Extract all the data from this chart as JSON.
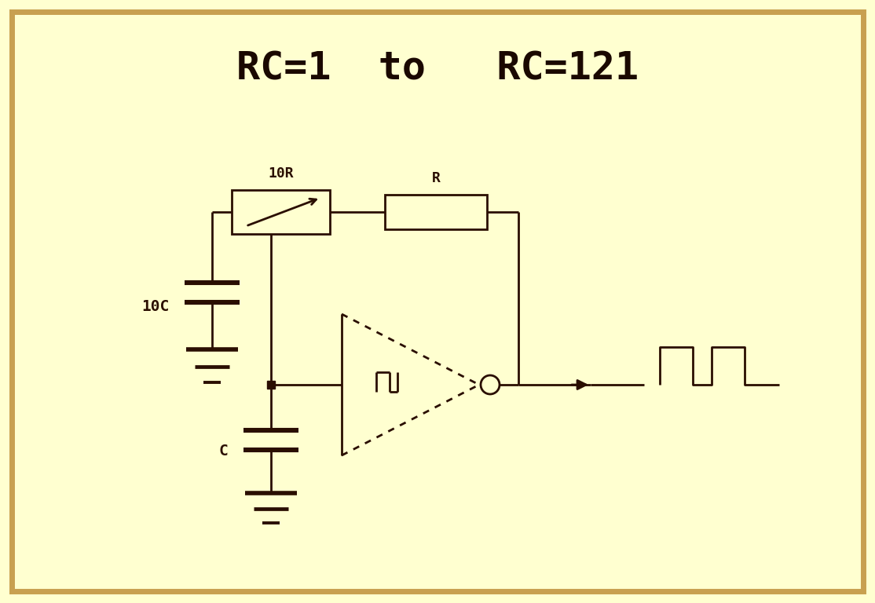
{
  "title": "RC=1  to   RC=121",
  "title_fontsize": 36,
  "title_fontweight": "bold",
  "title_color": "#1a0800",
  "bg_color": "#ffffd0",
  "border_color": "#c8a050",
  "line_color": "#2a0e00",
  "line_width": 2.0,
  "label_10R": "10R",
  "label_R": "R",
  "label_10C": "10C",
  "label_C": "C",
  "label_fontsize": 13
}
